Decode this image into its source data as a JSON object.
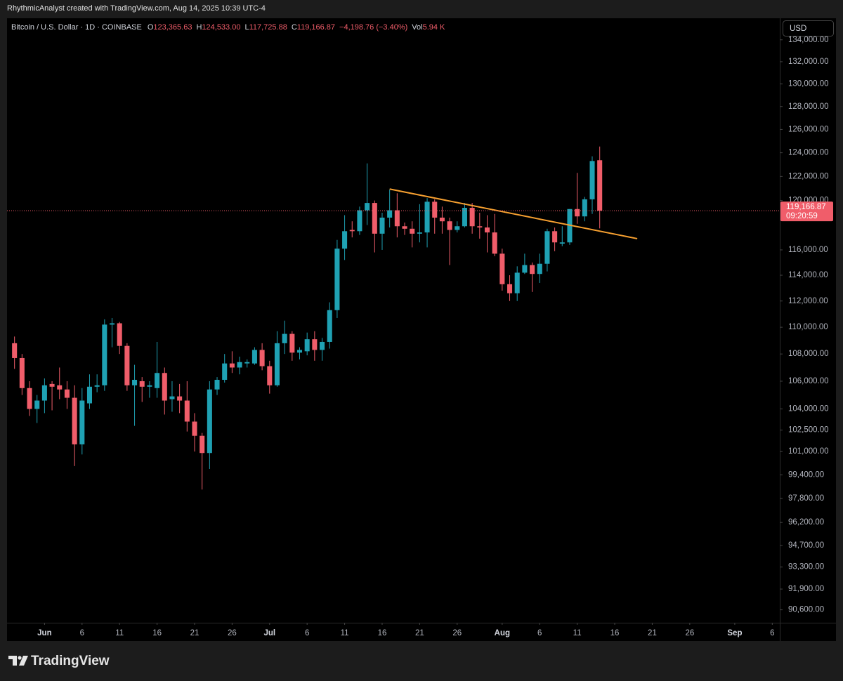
{
  "chart_data": {
    "type": "candlestick",
    "attribution": "RhythmicAnalyst created with TradingView.com, Aug 14, 2025 10:39 UTC-4",
    "title": "Bitcoin / U.S. Dollar · 1D · COINBASE",
    "ohlc_header": [
      {
        "label": "O",
        "value": "123,365.63"
      },
      {
        "label": "H",
        "value": "124,533.00"
      },
      {
        "label": "L",
        "value": "117,725.88"
      },
      {
        "label": "C",
        "value": "119,166.87"
      }
    ],
    "change": "−4,198.76 (−3.40%)",
    "volume_label": "Vol",
    "volume": "5.94 K",
    "currency": "USD",
    "last_price_label": "119,166.87",
    "countdown": "09:20:59",
    "logo": "TradingView",
    "up_color": "#1fa1b3",
    "down_color": "#f05d6a",
    "log_scale": true,
    "grid": false,
    "x": [
      "May 28",
      "May 29",
      "May 30",
      "May 31",
      "Jun 1",
      "Jun 2",
      "Jun 3",
      "Jun 4",
      "Jun 5",
      "Jun 6",
      "Jun 7",
      "Jun 8",
      "Jun 9",
      "Jun 10",
      "Jun 11",
      "Jun 12",
      "Jun 13",
      "Jun 14",
      "Jun 15",
      "Jun 16",
      "Jun 17",
      "Jun 18",
      "Jun 19",
      "Jun 20",
      "Jun 21",
      "Jun 22",
      "Jun 23",
      "Jun 24",
      "Jun 25",
      "Jun 26",
      "Jun 27",
      "Jun 28",
      "Jun 29",
      "Jun 30",
      "Jul 1",
      "Jul 2",
      "Jul 3",
      "Jul 4",
      "Jul 5",
      "Jul 6",
      "Jul 7",
      "Jul 8",
      "Jul 9",
      "Jul 10",
      "Jul 11",
      "Jul 12",
      "Jul 13",
      "Jul 14",
      "Jul 15",
      "Jul 16",
      "Jul 17",
      "Jul 18",
      "Jul 19",
      "Jul 20",
      "Jul 21",
      "Jul 22",
      "Jul 23",
      "Jul 24",
      "Jul 25",
      "Jul 26",
      "Jul 27",
      "Jul 28",
      "Jul 29",
      "Jul 30",
      "Jul 31",
      "Aug 1",
      "Aug 2",
      "Aug 3",
      "Aug 4",
      "Aug 5",
      "Aug 6",
      "Aug 7",
      "Aug 8",
      "Aug 9",
      "Aug 10",
      "Aug 11",
      "Aug 12",
      "Aug 13",
      "Aug 14"
    ],
    "open": [
      108800,
      107700,
      105500,
      104000,
      104600,
      105800,
      105700,
      105400,
      104800,
      101500,
      104400,
      105600,
      105700,
      110200,
      110300,
      108600,
      105700,
      106000,
      105600,
      105500,
      106600,
      104700,
      104900,
      104600,
      103100,
      102100,
      100900,
      105400,
      106100,
      107300,
      107000,
      107300,
      107300,
      108300,
      107100,
      105700,
      108800,
      109500,
      108100,
      108200,
      109100,
      108300,
      108900,
      111300,
      116100,
      117600,
      117500,
      119200,
      119800,
      117300,
      118600,
      119200,
      117900,
      117700,
      117300,
      117400,
      119900,
      118600,
      118300,
      117600,
      117900,
      119400,
      117900,
      117800,
      117400,
      115700,
      113300,
      112600,
      114200,
      114800,
      114100,
      114900,
      117500,
      116500,
      116600,
      119300,
      118700,
      120100,
      123365.63
    ],
    "high": [
      109300,
      108000,
      106000,
      105000,
      106200,
      106000,
      107000,
      106000,
      105700,
      105500,
      106500,
      106500,
      110600,
      110700,
      110400,
      108800,
      107200,
      106300,
      106000,
      108900,
      107000,
      106000,
      105800,
      106000,
      103700,
      102300,
      106000,
      106300,
      108000,
      108200,
      107800,
      107600,
      108500,
      108800,
      107500,
      109700,
      110500,
      109700,
      108500,
      109600,
      109700,
      109200,
      111900,
      116800,
      118800,
      118300,
      119500,
      123100,
      120000,
      119000,
      120900,
      120600,
      118200,
      118300,
      119700,
      120200,
      120100,
      119500,
      118600,
      118300,
      119800,
      119800,
      119000,
      118800,
      118900,
      116100,
      114000,
      114700,
      115700,
      115000,
      115700,
      117700,
      117800,
      117900,
      119300,
      122300,
      120300,
      123700,
      124533.0
    ],
    "low": [
      106900,
      105000,
      103500,
      103000,
      103700,
      103900,
      104700,
      104000,
      100000,
      100800,
      104000,
      105200,
      105300,
      108500,
      108000,
      105300,
      102800,
      104500,
      104800,
      104800,
      103600,
      103800,
      103700,
      102400,
      101000,
      98400,
      99800,
      105000,
      105900,
      106600,
      106500,
      107000,
      107200,
      106800,
      105100,
      105600,
      108000,
      107500,
      107600,
      107900,
      107500,
      107500,
      108400,
      110700,
      115200,
      117000,
      117200,
      118000,
      115800,
      116000,
      117800,
      117000,
      117200,
      116200,
      116600,
      116200,
      117300,
      117300,
      114800,
      117400,
      117800,
      117300,
      116900,
      115800,
      115500,
      112800,
      112000,
      112000,
      114100,
      112700,
      113400,
      114300,
      115900,
      116300,
      116400,
      118100,
      118300,
      118900,
      117725.88
    ],
    "close": [
      107700,
      105500,
      104000,
      104600,
      105700,
      105600,
      105400,
      104800,
      101500,
      104600,
      105600,
      105700,
      110200,
      110300,
      108600,
      105700,
      106100,
      105600,
      105700,
      106600,
      104600,
      104900,
      104600,
      103100,
      102100,
      100900,
      105400,
      106100,
      107300,
      107000,
      107400,
      107400,
      108300,
      107100,
      105700,
      108800,
      109500,
      108100,
      108300,
      109100,
      108300,
      108900,
      111300,
      116100,
      117500,
      117500,
      119200,
      119800,
      117300,
      118600,
      119200,
      117900,
      117700,
      117300,
      117400,
      119900,
      118600,
      118300,
      117600,
      117900,
      119400,
      117900,
      117800,
      117400,
      115700,
      113300,
      112600,
      114200,
      114800,
      114100,
      114900,
      117500,
      116600,
      116600,
      119300,
      118700,
      120100,
      123300,
      119166.87
    ],
    "trendline": {
      "color": "#f7a030",
      "x": [
        "Jul 17",
        "Aug 19"
      ],
      "y": [
        120950,
        116900
      ]
    },
    "xlim": [
      "May 27",
      "Sep 7"
    ],
    "xticks": [
      {
        "value": "Jun 1",
        "label": "Jun"
      },
      {
        "value": "Jun 6",
        "label": "6"
      },
      {
        "value": "Jun 11",
        "label": "11"
      },
      {
        "value": "Jun 16",
        "label": "16"
      },
      {
        "value": "Jun 21",
        "label": "21"
      },
      {
        "value": "Jun 26",
        "label": "26"
      },
      {
        "value": "Jul 1",
        "label": "Jul"
      },
      {
        "value": "Jul 6",
        "label": "6"
      },
      {
        "value": "Jul 11",
        "label": "11"
      },
      {
        "value": "Jul 16",
        "label": "16"
      },
      {
        "value": "Jul 21",
        "label": "21"
      },
      {
        "value": "Jul 26",
        "label": "26"
      },
      {
        "value": "Aug 1",
        "label": "Aug"
      },
      {
        "value": "Aug 6",
        "label": "6"
      },
      {
        "value": "Aug 11",
        "label": "11"
      },
      {
        "value": "Aug 16",
        "label": "16"
      },
      {
        "value": "Aug 21",
        "label": "21"
      },
      {
        "value": "Aug 26",
        "label": "26"
      },
      {
        "value": "Sep 1",
        "label": "Sep"
      },
      {
        "value": "Sep 6",
        "label": "6"
      }
    ],
    "ylim": [
      89800,
      136000
    ],
    "yticks": [
      {
        "value": 134000,
        "label": "134,000.00"
      },
      {
        "value": 132000,
        "label": "132,000.00"
      },
      {
        "value": 130000,
        "label": "130,000.00"
      },
      {
        "value": 128000,
        "label": "128,000.00"
      },
      {
        "value": 126000,
        "label": "126,000.00"
      },
      {
        "value": 124000,
        "label": "124,000.00"
      },
      {
        "value": 122000,
        "label": "122,000.00"
      },
      {
        "value": 120000,
        "label": "120,000.00"
      },
      {
        "value": 116000,
        "label": "116,000.00"
      },
      {
        "value": 114000,
        "label": "114,000.00"
      },
      {
        "value": 112000,
        "label": "112,000.00"
      },
      {
        "value": 110000,
        "label": "110,000.00"
      },
      {
        "value": 108000,
        "label": "108,000.00"
      },
      {
        "value": 106000,
        "label": "106,000.00"
      },
      {
        "value": 104000,
        "label": "104,000.00"
      },
      {
        "value": 102500,
        "label": "102,500.00"
      },
      {
        "value": 101000,
        "label": "101,000.00"
      },
      {
        "value": 99400,
        "label": "99,400.00"
      },
      {
        "value": 97800,
        "label": "97,800.00"
      },
      {
        "value": 96200,
        "label": "96,200.00"
      },
      {
        "value": 94700,
        "label": "94,700.00"
      },
      {
        "value": 93300,
        "label": "93,300.00"
      },
      {
        "value": 91900,
        "label": "91,900.00"
      },
      {
        "value": 90600,
        "label": "90,600.00"
      }
    ]
  }
}
